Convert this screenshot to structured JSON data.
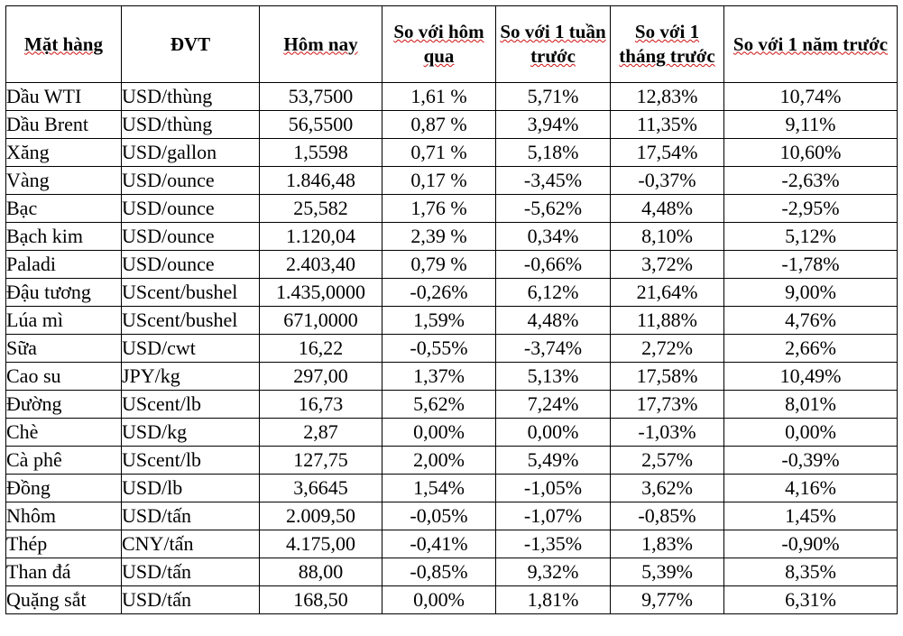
{
  "table": {
    "headers": [
      "Mặt hàng",
      "ĐVT",
      "Hôm nay",
      "So với hôm qua",
      "So với 1 tuần trước",
      "So với 1 tháng trước",
      "So với 1 năm trước"
    ],
    "rows": [
      {
        "name": "Dầu WTI",
        "unit": "USD/thùng",
        "today": "53,7500",
        "vs_yesterday": "1,61 %",
        "vs_week": "5,71%",
        "vs_month": "12,83%",
        "vs_year": "10,74%"
      },
      {
        "name": "Dầu Brent",
        "unit": "USD/thùng",
        "today": "56,5500",
        "vs_yesterday": "0,87 %",
        "vs_week": "3,94%",
        "vs_month": "11,35%",
        "vs_year": "9,11%"
      },
      {
        "name": "Xăng",
        "unit": "USD/gallon",
        "today": "1,5598",
        "vs_yesterday": "0,71 %",
        "vs_week": "5,18%",
        "vs_month": "17,54%",
        "vs_year": "10,60%"
      },
      {
        "name": "Vàng",
        "unit": "USD/ounce",
        "today": "1.846,48",
        "vs_yesterday": "0,17 %",
        "vs_week": "-3,45%",
        "vs_month": "-0,37%",
        "vs_year": "-2,63%"
      },
      {
        "name": "Bạc",
        "unit": "USD/ounce",
        "today": "25,582",
        "vs_yesterday": "1,76 %",
        "vs_week": "-5,62%",
        "vs_month": "4,48%",
        "vs_year": "-2,95%"
      },
      {
        "name": "Bạch kim",
        "unit": "USD/ounce",
        "today": "1.120,04",
        "vs_yesterday": "2,39 %",
        "vs_week": "0,34%",
        "vs_month": "8,10%",
        "vs_year": "5,12%"
      },
      {
        "name": "Paladi",
        "unit": "USD/ounce",
        "today": "2.403,40",
        "vs_yesterday": "0,79 %",
        "vs_week": "-0,66%",
        "vs_month": "3,72%",
        "vs_year": "-1,78%"
      },
      {
        "name": "Đậu tương",
        "unit": "UScent/bushel",
        "today": "1.435,0000",
        "vs_yesterday": "-0,26%",
        "vs_week": "6,12%",
        "vs_month": "21,64%",
        "vs_year": "9,00%"
      },
      {
        "name": "Lúa mì",
        "unit": "UScent/bushel",
        "today": "671,0000",
        "vs_yesterday": "1,59%",
        "vs_week": "4,48%",
        "vs_month": "11,88%",
        "vs_year": "4,76%"
      },
      {
        "name": "Sữa",
        "unit": "USD/cwt",
        "today": "16,22",
        "vs_yesterday": "-0,55%",
        "vs_week": "-3,74%",
        "vs_month": "2,72%",
        "vs_year": "2,66%"
      },
      {
        "name": "Cao su",
        "unit": "JPY/kg",
        "today": "297,00",
        "vs_yesterday": "1,37%",
        "vs_week": "5,13%",
        "vs_month": "17,58%",
        "vs_year": "10,49%"
      },
      {
        "name": "Đường",
        "unit": "UScent/lb",
        "today": "16,73",
        "vs_yesterday": "5,62%",
        "vs_week": "7,24%",
        "vs_month": "17,73%",
        "vs_year": "8,01%"
      },
      {
        "name": "Chè",
        "unit": "USD/kg",
        "today": "2,87",
        "vs_yesterday": "0,00%",
        "vs_week": "0,00%",
        "vs_month": "-1,03%",
        "vs_year": "0,00%"
      },
      {
        "name": "Cà phê",
        "unit": "UScent/lb",
        "today": "127,75",
        "vs_yesterday": "2,00%",
        "vs_week": "5,49%",
        "vs_month": "2,57%",
        "vs_year": "-0,39%"
      },
      {
        "name": "Đồng",
        "unit": "USD/lb",
        "today": "3,6645",
        "vs_yesterday": "1,54%",
        "vs_week": "-1,05%",
        "vs_month": "3,62%",
        "vs_year": "4,16%"
      },
      {
        "name": "Nhôm",
        "unit": "USD/tấn",
        "today": "2.009,50",
        "vs_yesterday": "-0,05%",
        "vs_week": "-1,07%",
        "vs_month": "-0,85%",
        "vs_year": "1,45%"
      },
      {
        "name": "Thép",
        "unit": "CNY/tấn",
        "today": "4.175,00",
        "vs_yesterday": "-0,41%",
        "vs_week": "-1,35%",
        "vs_month": "1,83%",
        "vs_year": "-0,90%"
      },
      {
        "name": "Than đá",
        "unit": "USD/tấn",
        "today": "88,00",
        "vs_yesterday": "-0,85%",
        "vs_week": "9,32%",
        "vs_month": "5,39%",
        "vs_year": "8,35%"
      },
      {
        "name": "Quặng sắt",
        "unit": "USD/tấn",
        "today": "168,50",
        "vs_yesterday": "0,00%",
        "vs_week": "1,81%",
        "vs_month": "9,77%",
        "vs_year": "6,31%"
      }
    ]
  }
}
